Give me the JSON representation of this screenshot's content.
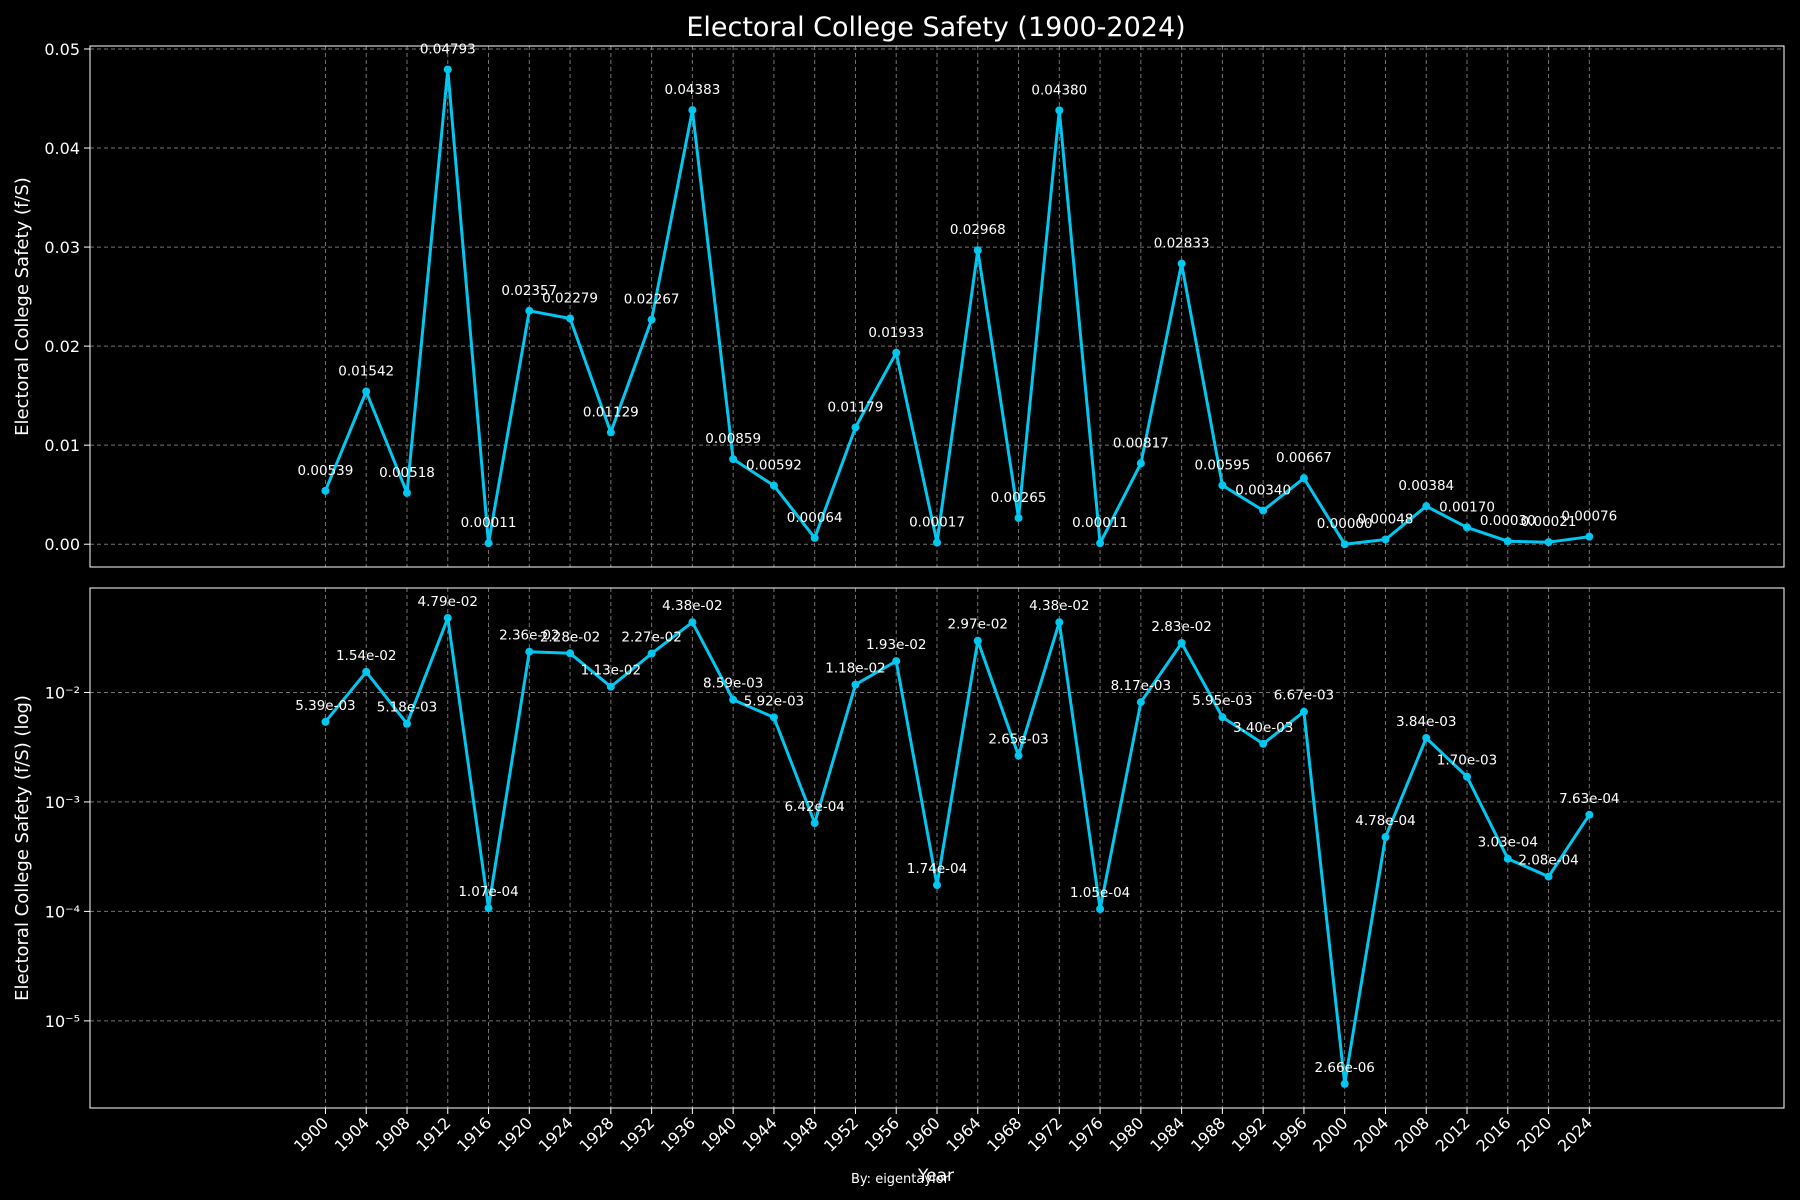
{
  "figure": {
    "title": "Electoral College Safety (1900-2024)",
    "xlabel": "Year",
    "credit": "By: eigentaylor"
  },
  "colors": {
    "background": "#000000",
    "line": "#00c8f0",
    "grid": "#888888",
    "text": "#ffffff"
  },
  "chart_data": [
    {
      "type": "line",
      "scale": "linear",
      "ylabel": "Electoral College Safety (f/S)",
      "ylim": [
        -0.0023,
        0.0503
      ],
      "yticks": [
        0,
        0.01,
        0.02,
        0.03,
        0.04,
        0.05
      ],
      "ytick_labels": [
        "0.00",
        "0.01",
        "0.02",
        "0.03",
        "0.04",
        "0.05"
      ],
      "grid": true,
      "x": [
        1900,
        1904,
        1908,
        1912,
        1916,
        1920,
        1924,
        1928,
        1932,
        1936,
        1940,
        1944,
        1948,
        1952,
        1956,
        1960,
        1964,
        1968,
        1972,
        1976,
        1980,
        1984,
        1988,
        1992,
        1996,
        2000,
        2004,
        2008,
        2012,
        2016,
        2020,
        2024
      ],
      "values": [
        0.00539,
        0.01542,
        0.00518,
        0.04793,
        0.000107,
        0.02357,
        0.02279,
        0.01129,
        0.02267,
        0.04383,
        0.00859,
        0.00592,
        0.000642,
        0.01179,
        0.01933,
        0.000174,
        0.02968,
        0.00265,
        0.0438,
        0.000105,
        0.00817,
        0.02833,
        0.00595,
        0.0034,
        0.00667,
        2.66e-06,
        0.000478,
        0.00384,
        0.0017,
        0.000303,
        0.000208,
        0.000763
      ],
      "data_labels": [
        "0.00539",
        "0.01542",
        "0.00518",
        "0.04793",
        "0.00011",
        "0.02357",
        "0.02279",
        "0.01129",
        "0.02267",
        "0.04383",
        "0.00859",
        "0.00592",
        "0.00064",
        "0.01179",
        "0.01933",
        "0.00017",
        "0.02968",
        "0.00265",
        "0.04380",
        "0.00011",
        "0.00817",
        "0.02833",
        "0.00595",
        "0.00340",
        "0.00667",
        "0.00000",
        "0.00048",
        "0.00384",
        "0.00170",
        "0.00030",
        "0.00021",
        "0.00076"
      ]
    },
    {
      "type": "line",
      "scale": "log",
      "ylabel": "Electoral College Safety (f/S) (log)",
      "ylim": [
        1.6e-06,
        0.09
      ],
      "yticks": [
        1e-05,
        0.0001,
        0.001,
        0.01
      ],
      "ytick_labels": [
        "10⁻⁵",
        "10⁻⁴",
        "10⁻³",
        "10⁻²"
      ],
      "grid": true,
      "x": [
        1900,
        1904,
        1908,
        1912,
        1916,
        1920,
        1924,
        1928,
        1932,
        1936,
        1940,
        1944,
        1948,
        1952,
        1956,
        1960,
        1964,
        1968,
        1972,
        1976,
        1980,
        1984,
        1988,
        1992,
        1996,
        2000,
        2004,
        2008,
        2012,
        2016,
        2020,
        2024
      ],
      "values": [
        0.00539,
        0.01542,
        0.00518,
        0.04793,
        0.000107,
        0.02357,
        0.02279,
        0.01129,
        0.02267,
        0.04383,
        0.00859,
        0.00592,
        0.000642,
        0.01179,
        0.01933,
        0.000174,
        0.02968,
        0.00265,
        0.0438,
        0.000105,
        0.00817,
        0.02833,
        0.00595,
        0.0034,
        0.00667,
        2.66e-06,
        0.000478,
        0.00384,
        0.0017,
        0.000303,
        0.000208,
        0.000763
      ],
      "data_labels": [
        "5.39e-03",
        "1.54e-02",
        "5.18e-03",
        "4.79e-02",
        "1.07e-04",
        "2.36e-02",
        "2.28e-02",
        "1.13e-02",
        "2.27e-02",
        "4.38e-02",
        "8.59e-03",
        "5.92e-03",
        "6.42e-04",
        "1.18e-02",
        "1.93e-02",
        "1.74e-04",
        "2.97e-02",
        "2.65e-03",
        "4.38e-02",
        "1.05e-04",
        "8.17e-03",
        "2.83e-02",
        "5.95e-03",
        "3.40e-03",
        "6.67e-03",
        "2.66e-06",
        "4.78e-04",
        "3.84e-03",
        "1.70e-03",
        "3.03e-04",
        "2.08e-04",
        "7.63e-04"
      ]
    }
  ]
}
